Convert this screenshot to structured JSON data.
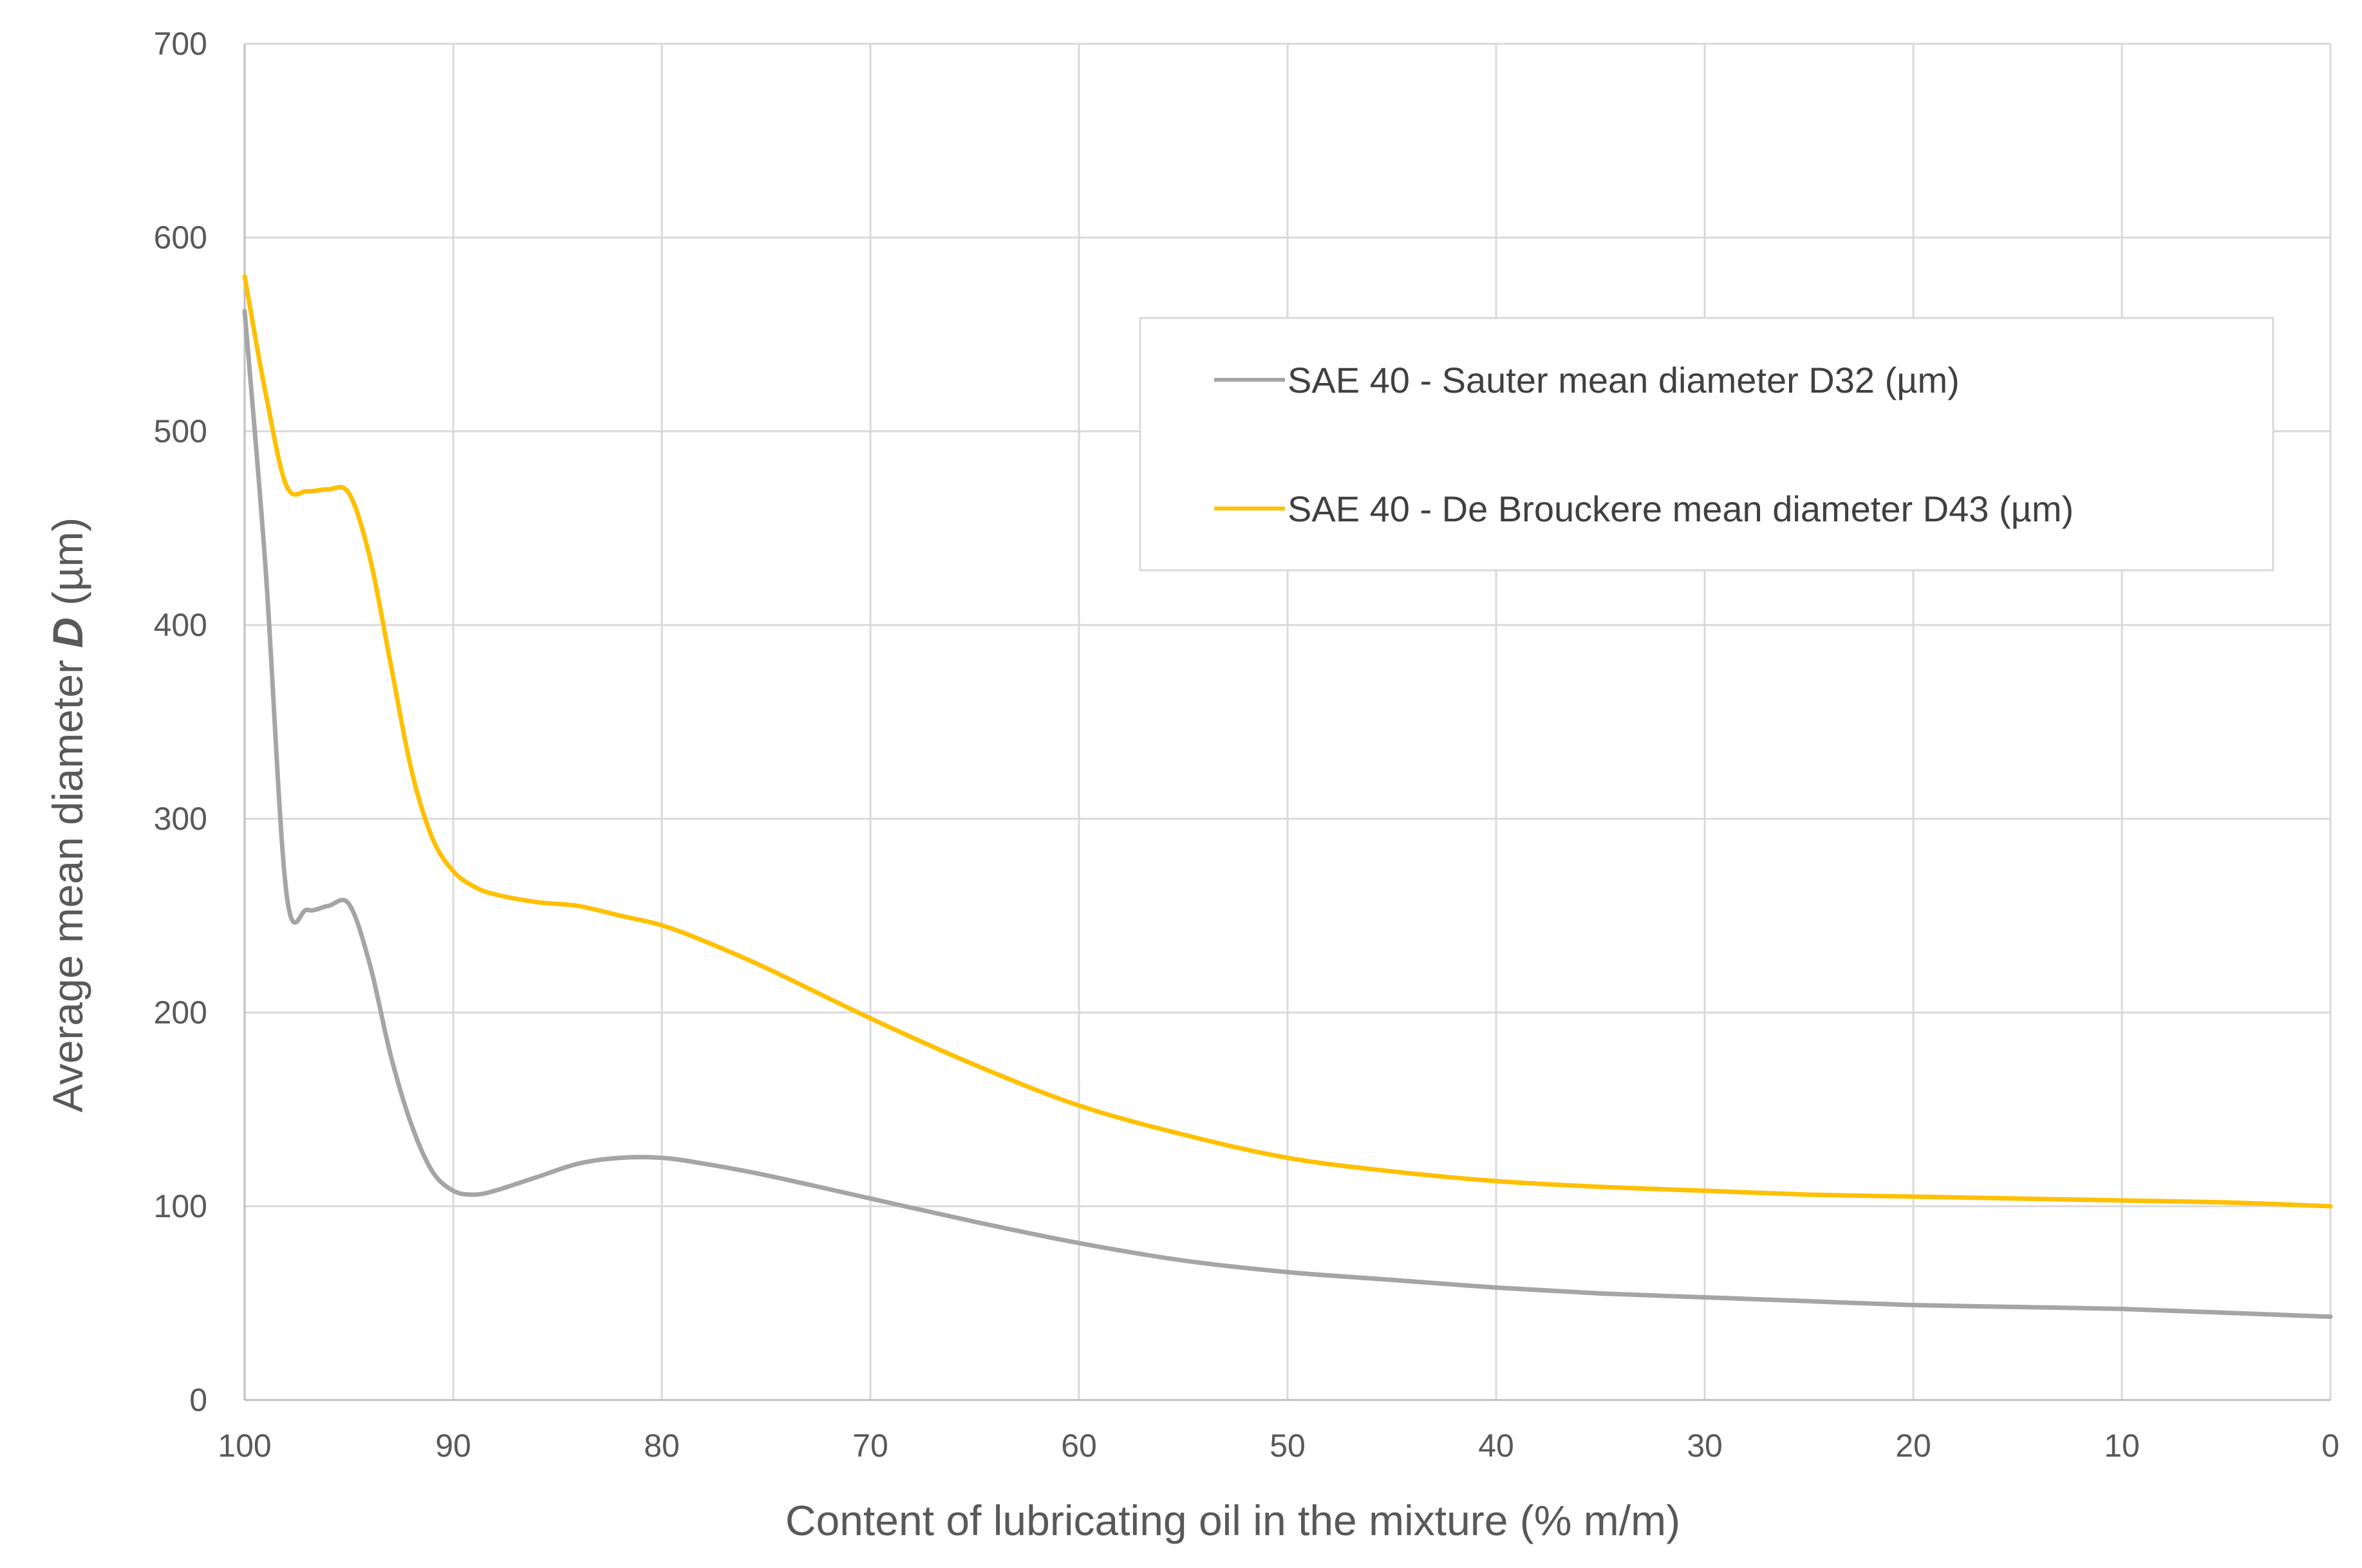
{
  "chart_data": {
    "type": "line",
    "xlabel": "Content of lubricating oil in the mixture (% m/m)",
    "ylabel_main": "Average mean diameter ",
    "ylabel_italic": "D",
    "ylabel_unit": " (µm)",
    "x_reversed": true,
    "xlim": [
      100,
      0
    ],
    "ylim": [
      0,
      700
    ],
    "x_ticks": [
      "100",
      "90",
      "80",
      "70",
      "60",
      "50",
      "40",
      "30",
      "20",
      "10",
      "0"
    ],
    "y_ticks": [
      "0",
      "100",
      "200",
      "300",
      "400",
      "500",
      "600",
      "700"
    ],
    "grid": true,
    "legend_position": "upper-right",
    "series": [
      {
        "name": "SAE 40 - Sauter mean diameter D32 (µm)",
        "color": "#a5a5a5",
        "x": [
          100,
          99,
          98,
          97,
          96,
          95,
          94,
          93,
          92,
          91,
          90,
          89,
          88,
          86,
          84,
          82,
          80,
          78,
          75,
          70,
          65,
          60,
          55,
          50,
          45,
          40,
          35,
          30,
          25,
          20,
          15,
          10,
          5,
          0
        ],
        "y": [
          562,
          430,
          262,
          253,
          255,
          256,
          225,
          178,
          142,
          118,
          108,
          106,
          108,
          115,
          122,
          125,
          125,
          122,
          116,
          104,
          92,
          81,
          72,
          66,
          62,
          58,
          55,
          53,
          51,
          49,
          48,
          47,
          45,
          43
        ]
      },
      {
        "name": "SAE 40 - De Brouckere mean diameter D43 (µm)",
        "color": "#ffc000",
        "x": [
          100,
          99,
          98,
          97,
          96,
          95,
          94,
          93,
          92,
          91,
          90,
          89,
          88,
          86,
          84,
          82,
          80,
          78,
          75,
          70,
          65,
          60,
          55,
          50,
          45,
          40,
          35,
          30,
          25,
          20,
          15,
          10,
          5,
          0
        ],
        "y": [
          580,
          520,
          472,
          469,
          470,
          468,
          435,
          380,
          325,
          290,
          273,
          265,
          261,
          257,
          255,
          250,
          245,
          237,
          223,
          197,
          173,
          152,
          137,
          125,
          118,
          113,
          110,
          108,
          106,
          105,
          104,
          103,
          102,
          100
        ]
      }
    ]
  }
}
